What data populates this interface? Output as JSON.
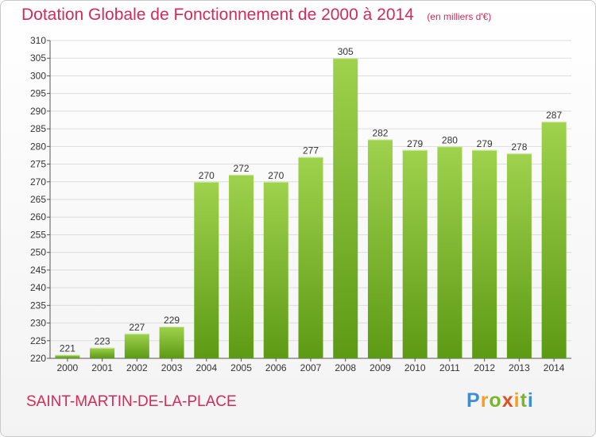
{
  "header": {
    "title": "Dotation Globale de Fonctionnement de 2000 à 2014",
    "subtitle": "(en milliers d'€)"
  },
  "footer": {
    "commune": "SAINT-MARTIN-DE-LA-PLACE",
    "logo_text": "Proxiti"
  },
  "colors": {
    "bar_light": "#9fd24d",
    "bar_dark": "#5d9a14",
    "grid": "#dddddd",
    "title": "#d42a59"
  },
  "chart_data": {
    "type": "bar",
    "categories": [
      "2000",
      "2001",
      "2002",
      "2003",
      "2004",
      "2005",
      "2006",
      "2007",
      "2008",
      "2009",
      "2010",
      "2011",
      "2012",
      "2013",
      "2014"
    ],
    "values": [
      221,
      223,
      227,
      229,
      270,
      272,
      270,
      277,
      305,
      282,
      279,
      280,
      279,
      278,
      287
    ],
    "title": "Dotation Globale de Fonctionnement de 2000 à 2014",
    "subtitle": "(en milliers d'€)",
    "xlabel": "",
    "ylabel": "",
    "ylim": [
      220,
      310
    ],
    "yticks": [
      220,
      225,
      230,
      235,
      240,
      245,
      250,
      255,
      260,
      265,
      270,
      275,
      280,
      285,
      290,
      295,
      300,
      305,
      310
    ],
    "grid": true,
    "data_labels": true
  }
}
